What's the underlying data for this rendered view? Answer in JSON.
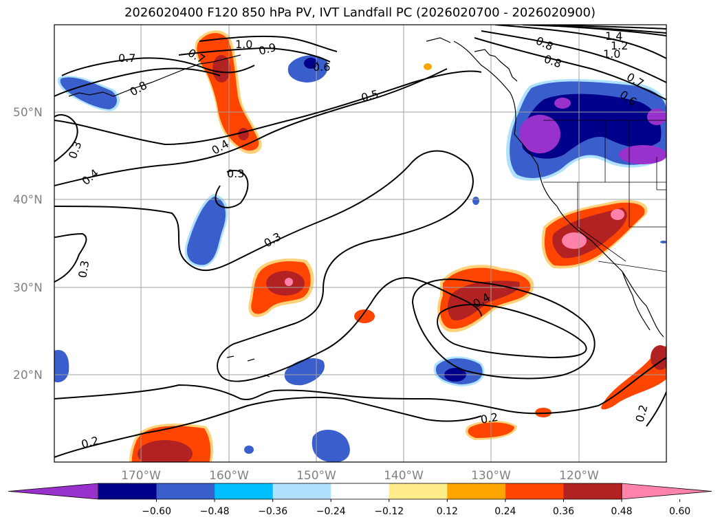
{
  "title": "2026020400 F120 850 hPa PV, IVT Landfall PC (2026020700 - 2026020900)",
  "lat_labels": [
    "50°N",
    "40°N",
    "30°N",
    "20°N"
  ],
  "lon_labels": [
    "170°W",
    "160°W",
    "150°W",
    "140°W",
    "130°W",
    "120°W"
  ],
  "contour_labels": [
    "1.4",
    "1.2",
    "1.0",
    "0.8",
    "0.8",
    "0.7",
    "0.7",
    "0.6",
    "0.6",
    "0.5",
    "0.4",
    "0.4",
    "0.3",
    "0.3",
    "0.3",
    "0.3",
    "0.2",
    "0.2",
    "0.2",
    "0.7",
    "0.8",
    "1.0",
    "0.9",
    "0.4"
  ],
  "colorbar": {
    "ticks": [
      "−0.60",
      "−0.48",
      "−0.36",
      "−0.24",
      "−0.12",
      "0.12",
      "0.24",
      "0.36",
      "0.48",
      "0.60"
    ],
    "colors": [
      "#9932cc",
      "#00008b",
      "#3a5fcd",
      "#00bfff",
      "#b0e2ff",
      "#ffffff",
      "#ffec8b",
      "#ffa500",
      "#ff4500",
      "#b22222",
      "#ff82ab"
    ]
  }
}
